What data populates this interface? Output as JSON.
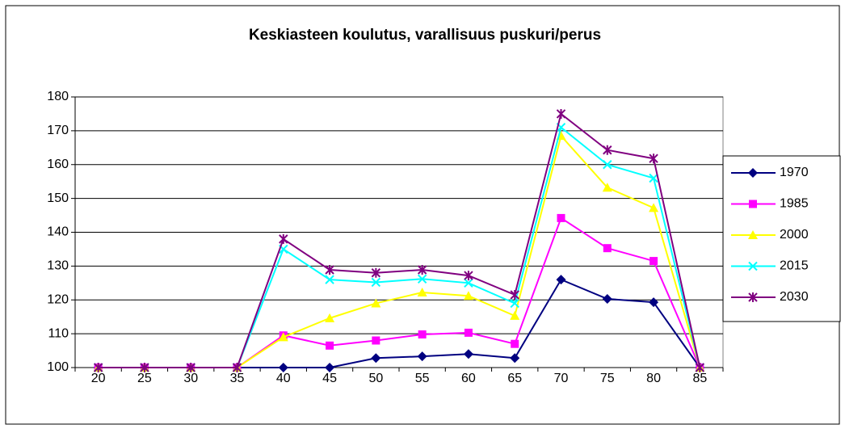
{
  "chart_data": {
    "type": "line",
    "title": "Keskiasteen koulutus, varallisuus puskuri/perus",
    "categories": [
      "20",
      "25",
      "30",
      "35",
      "40",
      "45",
      "50",
      "55",
      "60",
      "65",
      "70",
      "75",
      "80",
      "85"
    ],
    "series": [
      {
        "name": "1970",
        "color": "#000080",
        "marker": "diamond",
        "values": [
          100,
          100,
          100,
          100,
          100,
          100,
          102.8,
          103.3,
          104,
          102.8,
          126,
          120.3,
          119.3,
          100
        ]
      },
      {
        "name": "1985",
        "color": "#ff00ff",
        "marker": "square",
        "values": [
          100,
          100,
          100,
          100,
          109.5,
          106.5,
          108,
          109.8,
          110.3,
          107,
          144.2,
          135.3,
          131.5,
          100
        ]
      },
      {
        "name": "2000",
        "color": "#ffff00",
        "marker": "triangle",
        "values": [
          100,
          100,
          100,
          100,
          109,
          114.6,
          119,
          122.2,
          121.2,
          115.3,
          168.5,
          153.2,
          147.2,
          100
        ]
      },
      {
        "name": "2015",
        "color": "#00ffff",
        "marker": "x",
        "values": [
          100,
          100,
          100,
          100,
          135,
          126,
          125.2,
          126.2,
          125,
          119,
          171,
          160,
          156,
          100
        ]
      },
      {
        "name": "2030",
        "color": "#800080",
        "marker": "star",
        "values": [
          100,
          100,
          100,
          100,
          138,
          128.9,
          128,
          128.9,
          127.2,
          121.5,
          175,
          164.3,
          161.8,
          100
        ]
      }
    ],
    "ylim": [
      100,
      180
    ],
    "yticks": [
      100,
      110,
      120,
      130,
      140,
      150,
      160,
      170,
      180
    ],
    "grid": true,
    "legend": "right"
  }
}
